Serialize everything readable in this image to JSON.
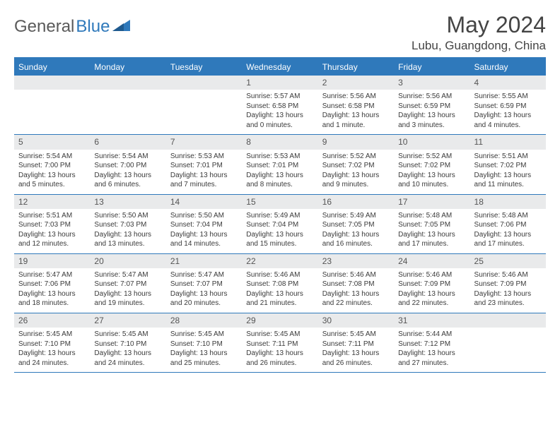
{
  "logo": {
    "gray_text": "General",
    "blue_text": "Blue"
  },
  "header": {
    "title": "May 2024",
    "location": "Lubu, Guangdong, China"
  },
  "colors": {
    "brand_blue": "#2f79bb",
    "header_text": "#ffffff",
    "daynum_bg": "#e9eaeb",
    "body_text": "#3a3a3a",
    "logo_gray": "#5a5a5a"
  },
  "weekdays": [
    "Sunday",
    "Monday",
    "Tuesday",
    "Wednesday",
    "Thursday",
    "Friday",
    "Saturday"
  ],
  "weeks": [
    [
      null,
      null,
      null,
      {
        "n": "1",
        "sr": "5:57 AM",
        "ss": "6:58 PM",
        "dl": "Daylight: 13 hours and 0 minutes."
      },
      {
        "n": "2",
        "sr": "5:56 AM",
        "ss": "6:58 PM",
        "dl": "Daylight: 13 hours and 1 minute."
      },
      {
        "n": "3",
        "sr": "5:56 AM",
        "ss": "6:59 PM",
        "dl": "Daylight: 13 hours and 3 minutes."
      },
      {
        "n": "4",
        "sr": "5:55 AM",
        "ss": "6:59 PM",
        "dl": "Daylight: 13 hours and 4 minutes."
      }
    ],
    [
      {
        "n": "5",
        "sr": "5:54 AM",
        "ss": "7:00 PM",
        "dl": "Daylight: 13 hours and 5 minutes."
      },
      {
        "n": "6",
        "sr": "5:54 AM",
        "ss": "7:00 PM",
        "dl": "Daylight: 13 hours and 6 minutes."
      },
      {
        "n": "7",
        "sr": "5:53 AM",
        "ss": "7:01 PM",
        "dl": "Daylight: 13 hours and 7 minutes."
      },
      {
        "n": "8",
        "sr": "5:53 AM",
        "ss": "7:01 PM",
        "dl": "Daylight: 13 hours and 8 minutes."
      },
      {
        "n": "9",
        "sr": "5:52 AM",
        "ss": "7:02 PM",
        "dl": "Daylight: 13 hours and 9 minutes."
      },
      {
        "n": "10",
        "sr": "5:52 AM",
        "ss": "7:02 PM",
        "dl": "Daylight: 13 hours and 10 minutes."
      },
      {
        "n": "11",
        "sr": "5:51 AM",
        "ss": "7:02 PM",
        "dl": "Daylight: 13 hours and 11 minutes."
      }
    ],
    [
      {
        "n": "12",
        "sr": "5:51 AM",
        "ss": "7:03 PM",
        "dl": "Daylight: 13 hours and 12 minutes."
      },
      {
        "n": "13",
        "sr": "5:50 AM",
        "ss": "7:03 PM",
        "dl": "Daylight: 13 hours and 13 minutes."
      },
      {
        "n": "14",
        "sr": "5:50 AM",
        "ss": "7:04 PM",
        "dl": "Daylight: 13 hours and 14 minutes."
      },
      {
        "n": "15",
        "sr": "5:49 AM",
        "ss": "7:04 PM",
        "dl": "Daylight: 13 hours and 15 minutes."
      },
      {
        "n": "16",
        "sr": "5:49 AM",
        "ss": "7:05 PM",
        "dl": "Daylight: 13 hours and 16 minutes."
      },
      {
        "n": "17",
        "sr": "5:48 AM",
        "ss": "7:05 PM",
        "dl": "Daylight: 13 hours and 17 minutes."
      },
      {
        "n": "18",
        "sr": "5:48 AM",
        "ss": "7:06 PM",
        "dl": "Daylight: 13 hours and 17 minutes."
      }
    ],
    [
      {
        "n": "19",
        "sr": "5:47 AM",
        "ss": "7:06 PM",
        "dl": "Daylight: 13 hours and 18 minutes."
      },
      {
        "n": "20",
        "sr": "5:47 AM",
        "ss": "7:07 PM",
        "dl": "Daylight: 13 hours and 19 minutes."
      },
      {
        "n": "21",
        "sr": "5:47 AM",
        "ss": "7:07 PM",
        "dl": "Daylight: 13 hours and 20 minutes."
      },
      {
        "n": "22",
        "sr": "5:46 AM",
        "ss": "7:08 PM",
        "dl": "Daylight: 13 hours and 21 minutes."
      },
      {
        "n": "23",
        "sr": "5:46 AM",
        "ss": "7:08 PM",
        "dl": "Daylight: 13 hours and 22 minutes."
      },
      {
        "n": "24",
        "sr": "5:46 AM",
        "ss": "7:09 PM",
        "dl": "Daylight: 13 hours and 22 minutes."
      },
      {
        "n": "25",
        "sr": "5:46 AM",
        "ss": "7:09 PM",
        "dl": "Daylight: 13 hours and 23 minutes."
      }
    ],
    [
      {
        "n": "26",
        "sr": "5:45 AM",
        "ss": "7:10 PM",
        "dl": "Daylight: 13 hours and 24 minutes."
      },
      {
        "n": "27",
        "sr": "5:45 AM",
        "ss": "7:10 PM",
        "dl": "Daylight: 13 hours and 24 minutes."
      },
      {
        "n": "28",
        "sr": "5:45 AM",
        "ss": "7:10 PM",
        "dl": "Daylight: 13 hours and 25 minutes."
      },
      {
        "n": "29",
        "sr": "5:45 AM",
        "ss": "7:11 PM",
        "dl": "Daylight: 13 hours and 26 minutes."
      },
      {
        "n": "30",
        "sr": "5:45 AM",
        "ss": "7:11 PM",
        "dl": "Daylight: 13 hours and 26 minutes."
      },
      {
        "n": "31",
        "sr": "5:44 AM",
        "ss": "7:12 PM",
        "dl": "Daylight: 13 hours and 27 minutes."
      },
      null
    ]
  ]
}
